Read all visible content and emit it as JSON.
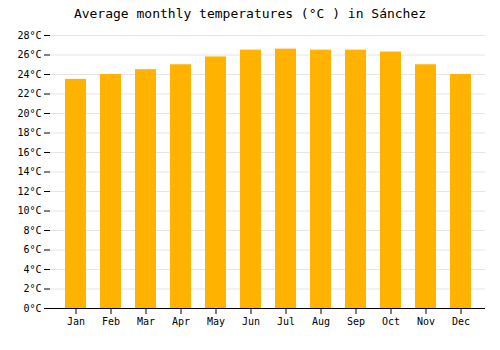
{
  "chart_data": {
    "type": "bar",
    "title": "Average monthly temperatures (°C ) in Sánchez",
    "categories": [
      "Jan",
      "Feb",
      "Mar",
      "Apr",
      "May",
      "Jun",
      "Jul",
      "Aug",
      "Sep",
      "Oct",
      "Nov",
      "Dec"
    ],
    "values": [
      23.5,
      24.0,
      24.5,
      25.0,
      25.8,
      26.5,
      26.6,
      26.5,
      26.5,
      26.3,
      25.0,
      24.0
    ],
    "color": "#FFB300",
    "ylim": [
      0,
      28
    ],
    "yticks": [
      {
        "value": 0,
        "label": "0°C"
      },
      {
        "value": 2,
        "label": "2°C"
      },
      {
        "value": 4,
        "label": "4°C"
      },
      {
        "value": 6,
        "label": "6°C"
      },
      {
        "value": 8,
        "label": "8°C"
      },
      {
        "value": 10,
        "label": "10°C"
      },
      {
        "value": 12,
        "label": "12°C"
      },
      {
        "value": 14,
        "label": "14°C"
      },
      {
        "value": 16,
        "label": "16°C"
      },
      {
        "value": 18,
        "label": "18°C"
      },
      {
        "value": 20,
        "label": "20°C"
      },
      {
        "value": 22,
        "label": "22°C"
      },
      {
        "value": 24,
        "label": "24°C"
      },
      {
        "value": 26,
        "label": "26°C"
      },
      {
        "value": 28,
        "label": "28°C"
      }
    ],
    "grid": true
  }
}
